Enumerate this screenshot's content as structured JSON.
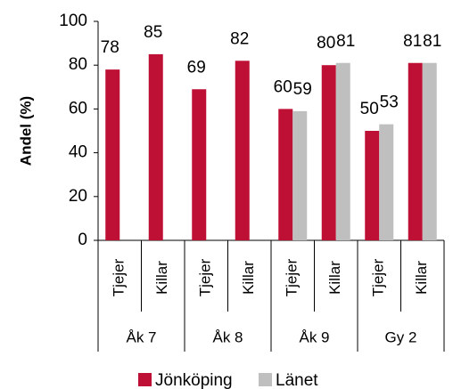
{
  "chart_data": {
    "type": "bar",
    "y_label": "Andel (%)",
    "categories": [
      "Tjejer",
      "Killar",
      "Tjejer",
      "Killar",
      "Tjejer",
      "Killar",
      "Tjejer",
      "Killar"
    ],
    "groups": [
      "Åk 7",
      "Åk 8",
      "Åk 9",
      "Gy 2"
    ],
    "series": [
      {
        "name": "Jönköping",
        "color": "#be0f34",
        "values": [
          78,
          85,
          69,
          82,
          60,
          80,
          50,
          81
        ]
      },
      {
        "name": "Länet",
        "color": "#bfbfbf",
        "values": [
          null,
          null,
          null,
          null,
          59,
          81,
          53,
          81
        ]
      }
    ],
    "ylim": [
      0,
      100
    ],
    "yticks": [
      0,
      20,
      40,
      60,
      80,
      100
    ],
    "legend": "bottom"
  }
}
